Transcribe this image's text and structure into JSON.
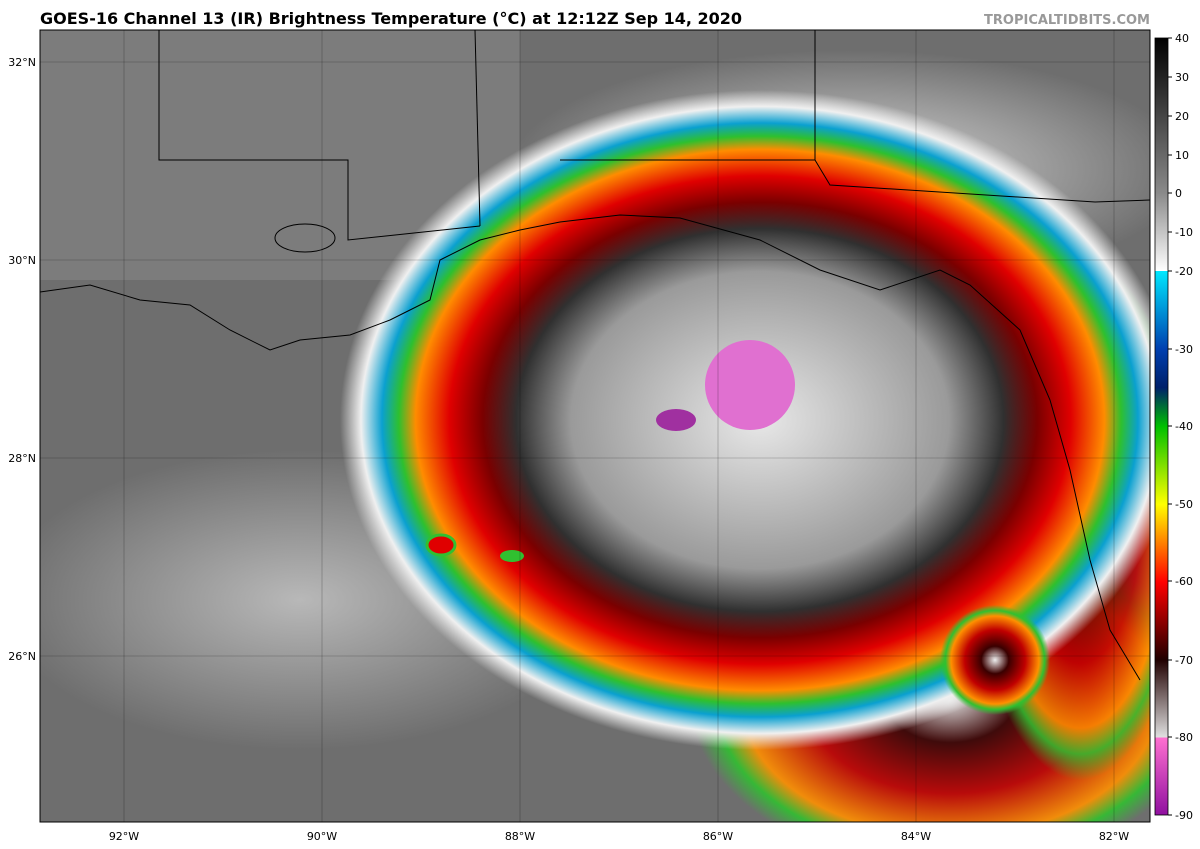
{
  "header": {
    "title": "GOES-16 Channel 13 (IR) Brightness Temperature (°C) at 12:12Z Sep 14, 2020",
    "credit": "TROPICALTIDBITS.COM"
  },
  "map": {
    "lat_labels": [
      "32°N",
      "30°N",
      "28°N",
      "26°N"
    ],
    "lon_labels": [
      "92°W",
      "90°W",
      "88°W",
      "86°W",
      "84°W",
      "82°W"
    ]
  },
  "colorbar": {
    "ticks": [
      40,
      30,
      20,
      10,
      0,
      -10,
      -20,
      -30,
      -40,
      -50,
      -60,
      -70,
      -80,
      -90
    ]
  }
}
